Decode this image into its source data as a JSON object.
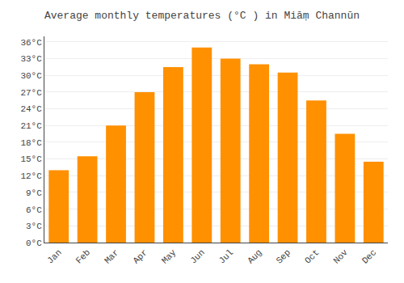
{
  "chart_data": {
    "type": "bar",
    "title": "Average monthly temperatures (°C ) in Miāṃ Channūn",
    "categories": [
      "Jan",
      "Feb",
      "Mar",
      "Apr",
      "May",
      "Jun",
      "Jul",
      "Aug",
      "Sep",
      "Oct",
      "Nov",
      "Dec"
    ],
    "values": [
      13.0,
      15.5,
      21.0,
      27.0,
      31.5,
      35.0,
      33.0,
      32.0,
      30.5,
      25.5,
      19.5,
      14.5
    ],
    "color": "#FF9000",
    "ylim": [
      0,
      37
    ],
    "yticks": [
      {
        "value": 0,
        "label": "0°C"
      },
      {
        "value": 3,
        "label": "3°C"
      },
      {
        "value": 6,
        "label": "6°C"
      },
      {
        "value": 9,
        "label": "9°C"
      },
      {
        "value": 12,
        "label": "12°C"
      },
      {
        "value": 15,
        "label": "15°C"
      },
      {
        "value": 18,
        "label": "18°C"
      },
      {
        "value": 21,
        "label": "21°C"
      },
      {
        "value": 24,
        "label": "24°C"
      },
      {
        "value": 27,
        "label": "27°C"
      },
      {
        "value": 30,
        "label": "30°C"
      },
      {
        "value": 33,
        "label": "33°C"
      },
      {
        "value": 36,
        "label": "36°C"
      }
    ],
    "grid": true
  }
}
